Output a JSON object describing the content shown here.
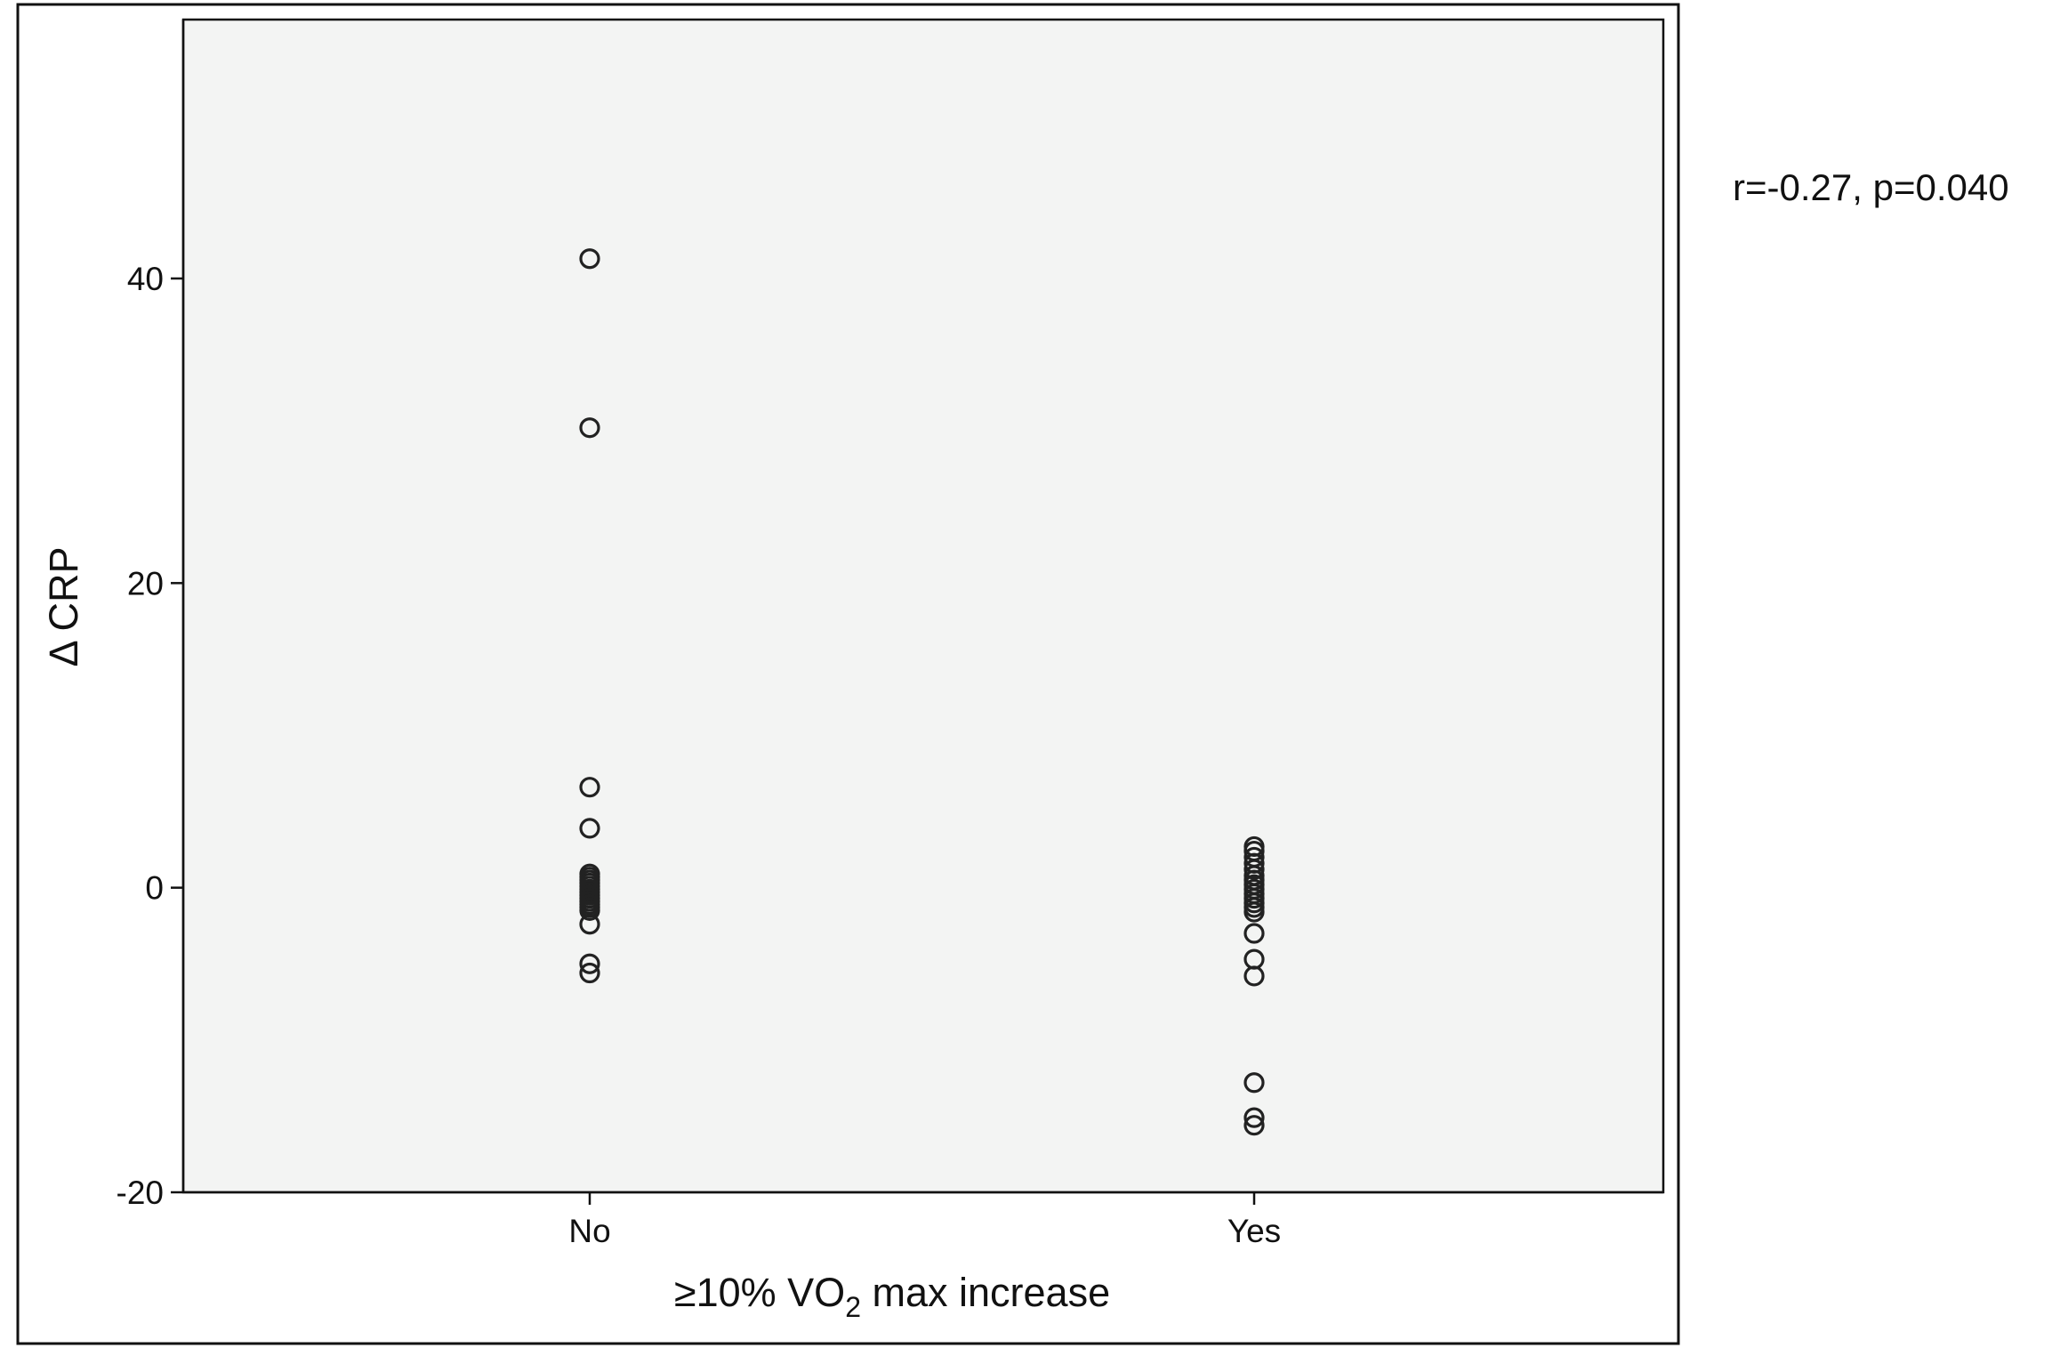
{
  "chart_data": {
    "type": "scatter",
    "title": "",
    "xlabel_parts": [
      "≥10% VO",
      "2",
      " max increase"
    ],
    "ylabel": "Δ CRP",
    "annotation": "r=-0.27, p=0.040",
    "categories": [
      "No",
      "Yes"
    ],
    "ylim": [
      -20,
      57
    ],
    "yticks": [
      -20,
      0,
      20,
      40
    ],
    "grid": false,
    "legend": "none",
    "series": [
      {
        "category": "No",
        "values": [
          41.3,
          30.2,
          6.6,
          3.9,
          0.9,
          0.7,
          0.5,
          0.3,
          0.1,
          -0.1,
          -0.3,
          -0.5,
          -0.7,
          -0.9,
          -1.1,
          -1.3,
          -1.5,
          -2.4,
          -5.0,
          -5.6
        ]
      },
      {
        "category": "Yes",
        "values": [
          2.7,
          2.4,
          2.0,
          1.6,
          1.2,
          0.8,
          0.5,
          0.2,
          -0.1,
          -0.4,
          -0.7,
          -1.0,
          -1.3,
          -1.6,
          -3.0,
          -4.7,
          -5.8,
          -12.8,
          -15.1,
          -15.6
        ]
      }
    ]
  }
}
